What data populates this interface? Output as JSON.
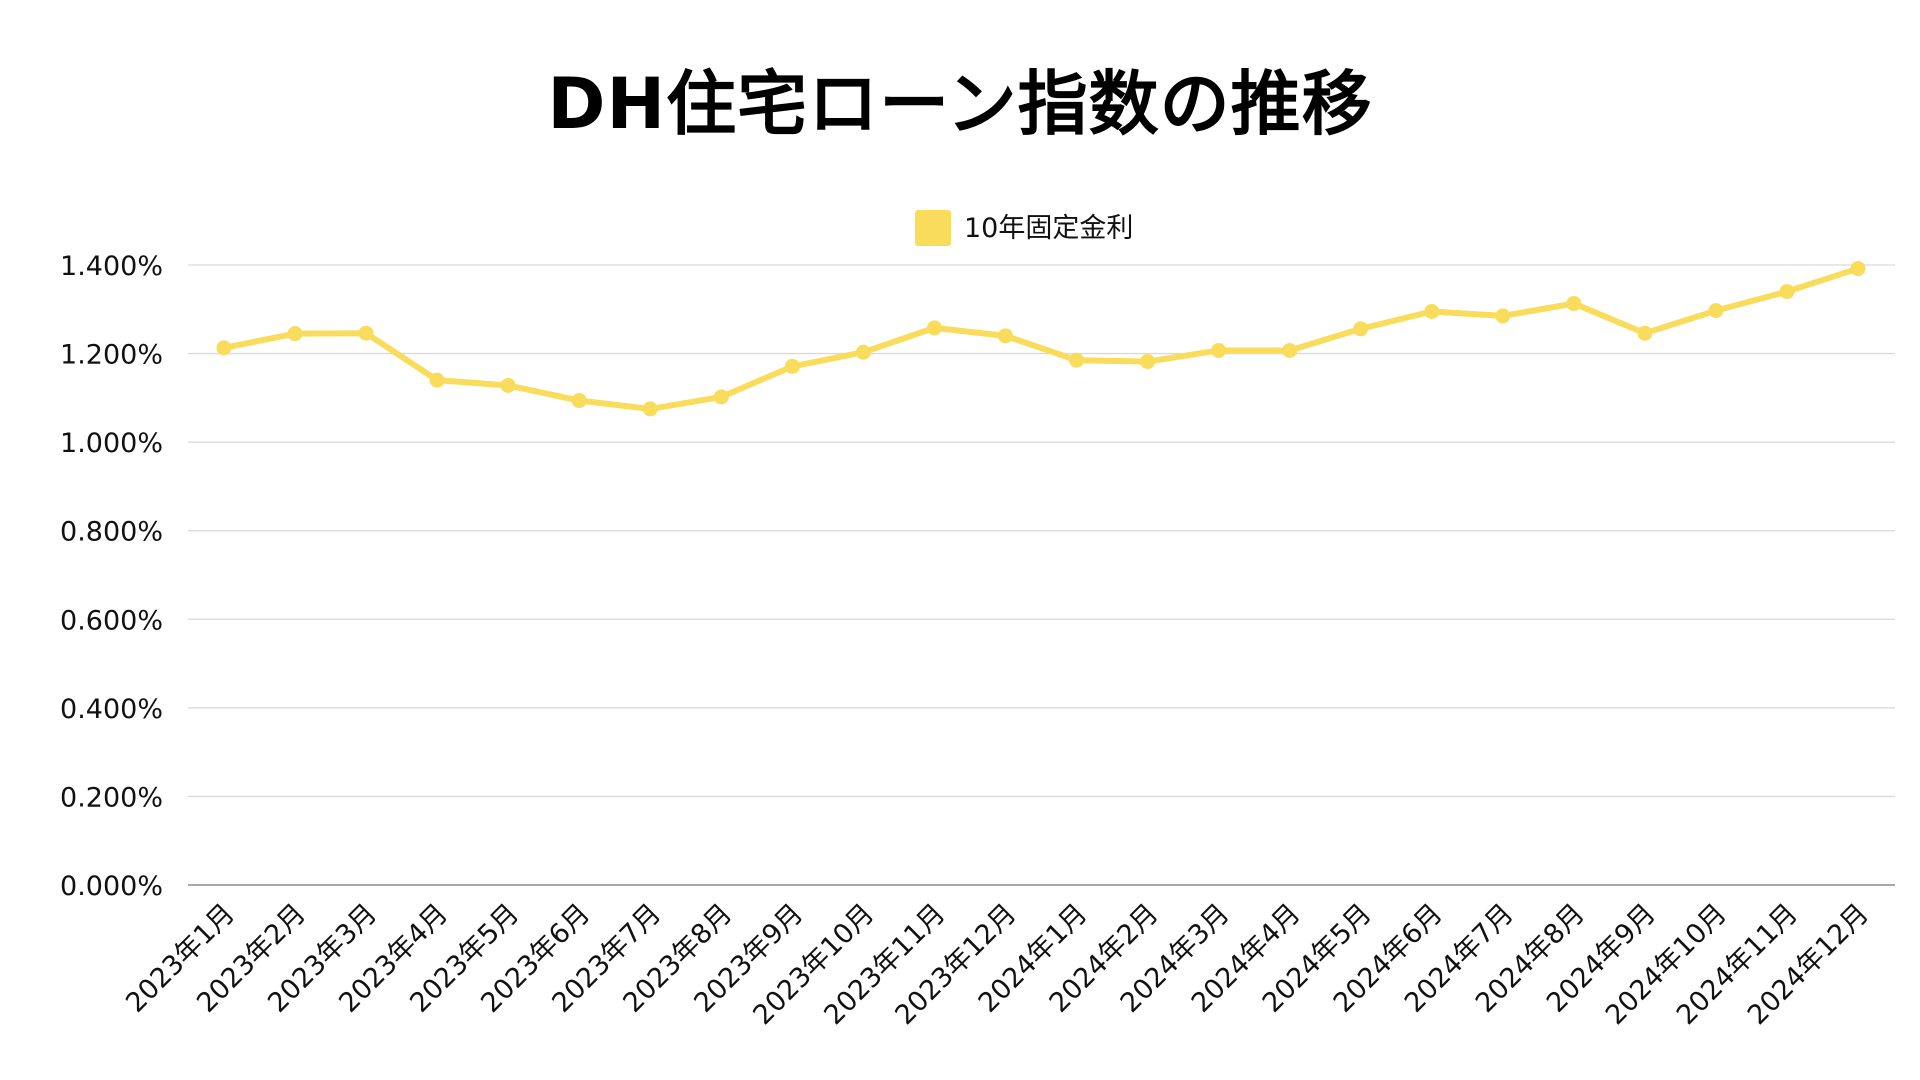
{
  "chart_data": {
    "type": "line",
    "title": "DH住宅ローン指数の推移",
    "xlabel": "",
    "ylabel": "",
    "ylim": [
      0,
      1.4
    ],
    "y_ticks": [
      "0.000%",
      "0.200%",
      "0.400%",
      "0.600%",
      "0.800%",
      "1.000%",
      "1.200%",
      "1.400%"
    ],
    "y_tick_values": [
      0,
      0.2,
      0.4,
      0.6,
      0.8,
      1.0,
      1.2,
      1.4
    ],
    "grid": true,
    "legend_position": "top-center",
    "categories": [
      "2023年1月",
      "2023年2月",
      "2023年3月",
      "2023年4月",
      "2023年5月",
      "2023年6月",
      "2023年7月",
      "2023年8月",
      "2023年9月",
      "2023年10月",
      "2023年11月",
      "2023年12月",
      "2024年1月",
      "2024年2月",
      "2024年3月",
      "2024年4月",
      "2024年5月",
      "2024年6月",
      "2024年7月",
      "2024年8月",
      "2024年9月",
      "2024年10月",
      "2024年11月",
      "2024年12月"
    ],
    "series": [
      {
        "name": "10年固定金利",
        "color": "#f9dc5c",
        "values": [
          1.213,
          1.245,
          1.246,
          1.14,
          1.128,
          1.094,
          1.075,
          1.102,
          1.171,
          1.203,
          1.258,
          1.24,
          1.185,
          1.182,
          1.207,
          1.207,
          1.256,
          1.295,
          1.285,
          1.313,
          1.246,
          1.297,
          1.34,
          1.392
        ]
      }
    ]
  }
}
